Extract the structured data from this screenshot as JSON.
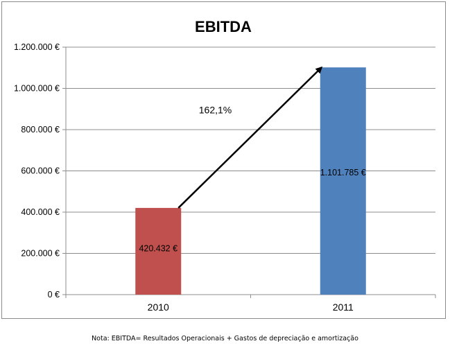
{
  "chart_data": {
    "type": "bar",
    "title": "EBITDA",
    "xlabel": "",
    "ylabel": "",
    "categories": [
      "2010",
      "2011"
    ],
    "values": [
      420432,
      1101785
    ],
    "data_labels": [
      "420.432 €",
      "1.101.785 €"
    ],
    "bar_colors": [
      "#c0504d",
      "#4f81bd"
    ],
    "ylim": [
      0,
      1200000
    ],
    "yticks": [
      0,
      200000,
      400000,
      600000,
      800000,
      1000000,
      1200000
    ],
    "ytick_labels": [
      "0 €",
      "200.000 €",
      "400.000 €",
      "600.000 €",
      "800.000 €",
      "1.000.000 €",
      "1.200.000 €"
    ],
    "grid": true,
    "legend": "none",
    "annotation": {
      "text": "162,1%",
      "arrow_from": {
        "category": "2010",
        "value": 420432
      },
      "arrow_to": {
        "category": "2011",
        "value": 1101785
      }
    }
  },
  "footnote": "Nota: EBITDA= Resultados Operacionais + Gastos de depreciação e amortização"
}
